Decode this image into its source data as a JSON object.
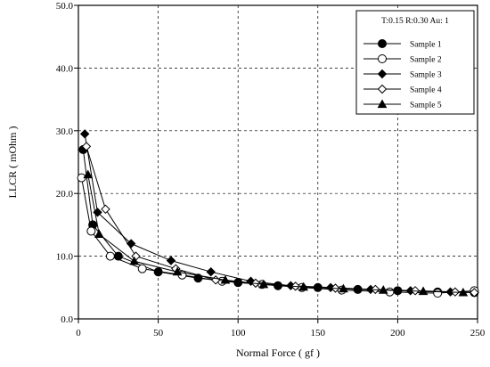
{
  "chart_data": {
    "type": "line",
    "title": "",
    "xlabel": "Normal Force ( gf )",
    "ylabel": "LLCR ( mOhm )",
    "xlim": [
      0,
      250
    ],
    "ylim": [
      0,
      50
    ],
    "xticks": [
      "0",
      "50",
      "100",
      "150",
      "200",
      "250"
    ],
    "yticks": [
      "0.0",
      "10.0",
      "20.0",
      "30.0",
      "40.0",
      "50.0"
    ],
    "grid": true,
    "legend_placement": "top-right",
    "legend_title": "T:0.15 R:0.30 Au: 1",
    "series": [
      {
        "name": "Sample 1",
        "marker": "filled-circle",
        "x": [
          3,
          9,
          25,
          50,
          75,
          100,
          125,
          150,
          175,
          200,
          225,
          248
        ],
        "y": [
          27.0,
          15.0,
          10.0,
          7.5,
          6.5,
          5.8,
          5.3,
          5.0,
          4.7,
          4.5,
          4.3,
          4.2
        ]
      },
      {
        "name": "Sample 2",
        "marker": "open-circle",
        "x": [
          2,
          8,
          20,
          40,
          65,
          90,
          115,
          140,
          165,
          195,
          225,
          248
        ],
        "y": [
          22.5,
          14.0,
          10.0,
          8.0,
          7.0,
          6.0,
          5.5,
          5.0,
          4.6,
          4.3,
          4.1,
          4.5
        ]
      },
      {
        "name": "Sample 3",
        "marker": "filled-diamond",
        "x": [
          4,
          12,
          33,
          58,
          83,
          108,
          133,
          158,
          183,
          208,
          233,
          248
        ],
        "y": [
          29.5,
          17.0,
          12.0,
          9.3,
          7.5,
          6.0,
          5.3,
          5.0,
          4.7,
          4.5,
          4.3,
          4.2
        ]
      },
      {
        "name": "Sample 4",
        "marker": "open-diamond",
        "x": [
          5,
          17,
          36,
          61,
          86,
          111,
          136,
          161,
          186,
          211,
          236,
          248
        ],
        "y": [
          27.5,
          17.5,
          10.0,
          8.0,
          6.2,
          5.7,
          5.2,
          4.9,
          4.7,
          4.5,
          4.3,
          4.2
        ]
      },
      {
        "name": "Sample 5",
        "marker": "filled-triangle",
        "x": [
          6,
          13,
          35,
          62,
          92,
          116,
          141,
          166,
          191,
          216,
          241
        ],
        "y": [
          23.0,
          13.5,
          9.2,
          7.5,
          6.2,
          5.5,
          5.1,
          4.8,
          4.6,
          4.4,
          4.2
        ]
      }
    ]
  }
}
